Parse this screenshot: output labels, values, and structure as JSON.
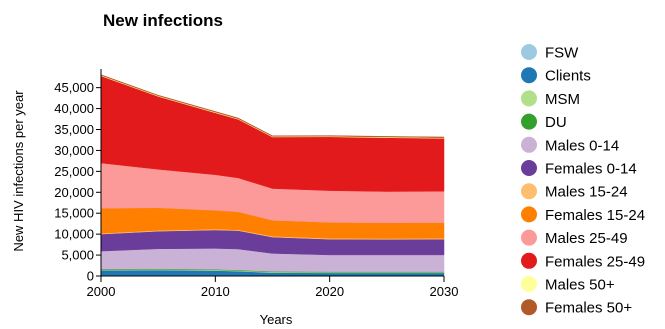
{
  "chart_data": {
    "type": "area",
    "stacked": true,
    "title": "New infections",
    "xlabel": "Years",
    "ylabel": "New HIV infections per year",
    "x": [
      2000,
      2005,
      2010,
      2012,
      2015,
      2020,
      2025,
      2030
    ],
    "xlim": [
      2000,
      2030
    ],
    "ylim": [
      0,
      48500
    ],
    "xticks": [
      2000,
      2010,
      2020,
      2030
    ],
    "yticks": [
      0,
      5000,
      10000,
      15000,
      20000,
      25000,
      30000,
      35000,
      40000,
      45000
    ],
    "ytick_labels": [
      "0",
      "5,000",
      "10,000",
      "15,000",
      "20,000",
      "25,000",
      "30,000",
      "35,000",
      "40,000",
      "45,000"
    ],
    "xtick_labels": [
      "2000",
      "2010",
      "2020",
      "2030"
    ],
    "grid": false,
    "legend_position": "right",
    "series": [
      {
        "name": "FSW",
        "color": "#9ecae1",
        "values": [
          150,
          150,
          150,
          140,
          100,
          100,
          100,
          100
        ]
      },
      {
        "name": "Clients",
        "color": "#1f78b4",
        "values": [
          1200,
          1250,
          1150,
          1000,
          700,
          650,
          650,
          650
        ]
      },
      {
        "name": "MSM",
        "color": "#b2df8a",
        "values": [
          150,
          150,
          150,
          150,
          150,
          150,
          150,
          150
        ]
      },
      {
        "name": "DU",
        "color": "#33a02c",
        "values": [
          150,
          150,
          150,
          150,
          150,
          150,
          150,
          150
        ]
      },
      {
        "name": "Males 0-14",
        "color": "#cab2d6",
        "values": [
          4300,
          4800,
          5000,
          5000,
          4300,
          4000,
          4000,
          4000
        ]
      },
      {
        "name": "Females 0-14",
        "color": "#6a3d9a",
        "values": [
          4050,
          4200,
          4400,
          4400,
          3900,
          3750,
          3700,
          3750
        ]
      },
      {
        "name": "Males 15-24",
        "color": "#fdbf6f",
        "values": [
          200,
          200,
          200,
          200,
          200,
          200,
          200,
          200
        ]
      },
      {
        "name": "Females 15-24",
        "color": "#ff7f00",
        "values": [
          6000,
          5400,
          4500,
          4300,
          3800,
          3800,
          3750,
          3750
        ]
      },
      {
        "name": "Males 25-49",
        "color": "#fb9a99",
        "values": [
          10800,
          9200,
          8500,
          8100,
          7600,
          7600,
          7500,
          7500
        ]
      },
      {
        "name": "Females 25-49",
        "color": "#e31a1c",
        "values": [
          20800,
          17400,
          14800,
          14000,
          12300,
          12850,
          12850,
          12650
        ]
      },
      {
        "name": "Males 50+",
        "color": "#ffff99",
        "values": [
          150,
          150,
          150,
          150,
          150,
          150,
          150,
          150
        ]
      },
      {
        "name": "Females 50+",
        "color": "#b15928",
        "values": [
          150,
          150,
          150,
          150,
          150,
          150,
          150,
          150
        ]
      }
    ]
  }
}
